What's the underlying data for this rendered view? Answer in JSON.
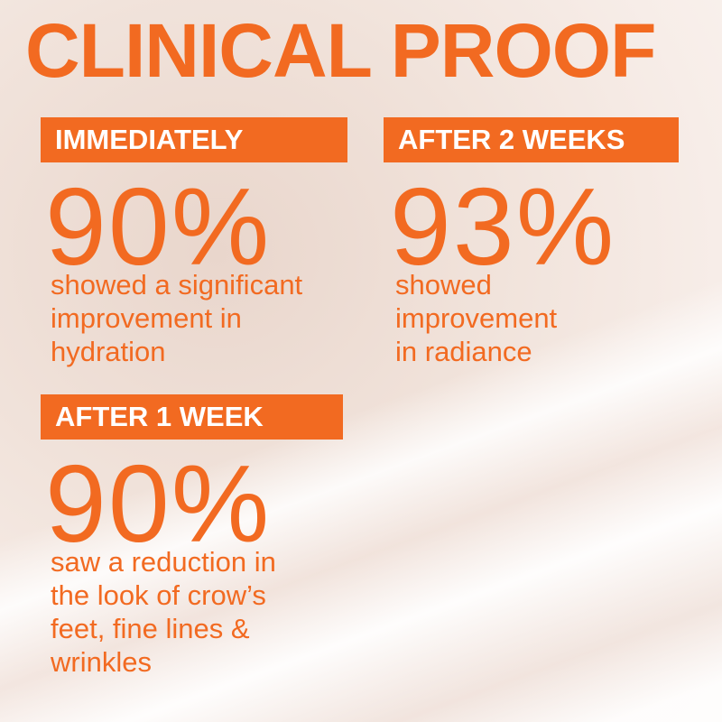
{
  "header": {
    "title": "CLINICAL PROOF"
  },
  "stats": [
    {
      "label": "IMMEDIATELY",
      "value": "90%",
      "lines": [
        "showed a significant",
        "improvement in",
        "hydration"
      ]
    },
    {
      "label": "AFTER 2 WEEKS",
      "value": "93%",
      "lines": [
        "showed",
        "improvement",
        "in radiance"
      ]
    },
    {
      "label": "AFTER 1 WEEK",
      "value": "90%",
      "lines": [
        "saw a reduction in",
        "the look of crow’s",
        "feet, fine lines &",
        "wrinkles"
      ]
    }
  ]
}
